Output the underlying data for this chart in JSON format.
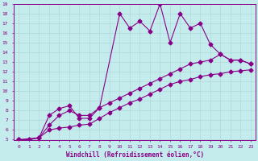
{
  "xlabel": "Windchill (Refroidissement éolien,°C)",
  "xlim": [
    -0.5,
    23.5
  ],
  "ylim": [
    5,
    19
  ],
  "xticks": [
    0,
    1,
    2,
    3,
    4,
    5,
    6,
    7,
    8,
    9,
    10,
    11,
    12,
    13,
    14,
    15,
    16,
    17,
    18,
    19,
    20,
    21,
    22,
    23
  ],
  "yticks": [
    5,
    6,
    7,
    8,
    9,
    10,
    11,
    12,
    13,
    14,
    15,
    16,
    17,
    18,
    19
  ],
  "bg_color": "#c5ecec",
  "grid_color": "#b0d8d8",
  "line_color": "#880088",
  "lines": [
    {
      "x": [
        0,
        1,
        2,
        3,
        4,
        5,
        6,
        7,
        8,
        9,
        10,
        11,
        12,
        13,
        14,
        15,
        16,
        17,
        18,
        19,
        20,
        21,
        22,
        23
      ],
      "y": [
        5,
        5,
        5.2,
        6.0,
        6.2,
        6.3,
        6.5,
        6.6,
        7.2,
        7.8,
        8.3,
        8.8,
        9.2,
        9.7,
        10.2,
        10.7,
        11.0,
        11.2,
        11.5,
        11.7,
        11.8,
        12.0,
        12.1,
        12.2
      ]
    },
    {
      "x": [
        0,
        1,
        2,
        3,
        4,
        5,
        6,
        7,
        8,
        9,
        10,
        11,
        12,
        13,
        14,
        15,
        16,
        17,
        18,
        19,
        20,
        21,
        22,
        23
      ],
      "y": [
        5,
        5,
        5.2,
        6.5,
        7.5,
        8.0,
        7.5,
        7.5,
        8.3,
        8.8,
        9.3,
        9.8,
        10.3,
        10.8,
        11.3,
        11.8,
        12.3,
        12.8,
        13.0,
        13.2,
        13.8,
        13.2,
        13.2,
        12.8
      ]
    },
    {
      "x": [
        0,
        2,
        3,
        4,
        5,
        6,
        7,
        8,
        10,
        11,
        12,
        13,
        14,
        15,
        16,
        17,
        18,
        19,
        20,
        21,
        22,
        23
      ],
      "y": [
        5,
        5.2,
        7.5,
        8.2,
        8.5,
        7.2,
        7.2,
        8.3,
        18.0,
        16.5,
        17.2,
        16.2,
        19.0,
        15.0,
        18.0,
        16.5,
        17.0,
        14.8,
        13.8,
        13.2,
        13.2,
        12.8
      ]
    }
  ],
  "marker": "D",
  "marker_size": 2.5,
  "line_width": 0.8
}
